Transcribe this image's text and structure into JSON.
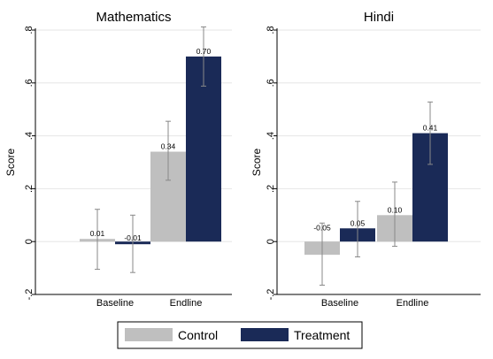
{
  "chart_data": [
    {
      "type": "bar",
      "title": "Mathematics",
      "xlabel": "",
      "ylabel": "Score",
      "ylim": [
        -0.2,
        0.8
      ],
      "yticks": [
        -0.2,
        0,
        0.2,
        0.4,
        0.6,
        0.8
      ],
      "ytick_labels": [
        "-.2",
        "0",
        ".2",
        ".4",
        ".6",
        ".8"
      ],
      "categories": [
        "Baseline",
        "Endline"
      ],
      "series": [
        {
          "name": "Control",
          "values": [
            0.01,
            0.34
          ],
          "labels": [
            "0.01",
            "0.34"
          ],
          "ci_low": [
            -0.105,
            0.232
          ],
          "ci_high": [
            0.122,
            0.455
          ]
        },
        {
          "name": "Treatment",
          "values": [
            -0.01,
            0.7
          ],
          "labels": [
            "-0.01",
            "0.70"
          ],
          "ci_low": [
            -0.117,
            0.588
          ],
          "ci_high": [
            0.1,
            0.812
          ]
        }
      ],
      "grid": true
    },
    {
      "type": "bar",
      "title": "Hindi",
      "xlabel": "",
      "ylabel": "Score",
      "ylim": [
        -0.2,
        0.8
      ],
      "yticks": [
        -0.2,
        0,
        0.2,
        0.4,
        0.6,
        0.8
      ],
      "ytick_labels": [
        "-.2",
        "0",
        ".2",
        ".4",
        ".6",
        ".8"
      ],
      "categories": [
        "Baseline",
        "Endline"
      ],
      "series": [
        {
          "name": "Control",
          "values": [
            -0.05,
            0.1
          ],
          "labels": [
            "-0.05",
            "0.10"
          ],
          "ci_low": [
            -0.165,
            -0.018
          ],
          "ci_high": [
            0.07,
            0.225
          ]
        },
        {
          "name": "Treatment",
          "values": [
            0.05,
            0.41
          ],
          "labels": [
            "0.05",
            "0.41"
          ],
          "ci_low": [
            -0.058,
            0.292
          ],
          "ci_high": [
            0.152,
            0.528
          ]
        }
      ],
      "grid": true
    }
  ],
  "legend": {
    "position": "bottom",
    "items": [
      {
        "label": "Control",
        "color": "#bfbfbf"
      },
      {
        "label": "Treatment",
        "color": "#1a2a57"
      }
    ]
  },
  "colors": {
    "control": "#bfbfbf",
    "treatment": "#1a2a57",
    "ci": "#888888",
    "grid": "#e6e6e6"
  }
}
